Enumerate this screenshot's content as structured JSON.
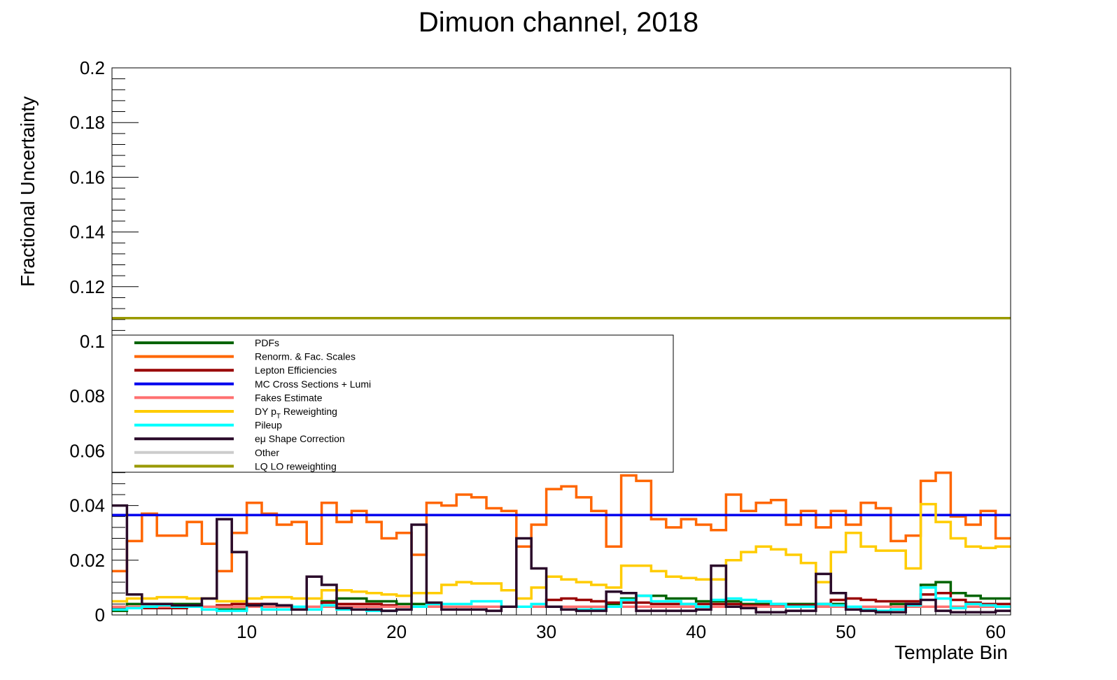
{
  "chart_data": {
    "type": "line",
    "step": true,
    "title": "Dimuon channel, 2018",
    "xlabel": "Template Bin",
    "ylabel": "Fractional Uncertainty",
    "xlim": [
      1,
      61
    ],
    "ylim": [
      0,
      0.2
    ],
    "x_ticks": [
      10,
      20,
      30,
      40,
      50,
      60
    ],
    "y_ticks": [
      0,
      0.02,
      0.04,
      0.06,
      0.08,
      0.1,
      0.12,
      0.14,
      0.16,
      0.18,
      0.2
    ],
    "y_tick_labels": [
      "0",
      "0.02",
      "0.04",
      "0.06",
      "0.08",
      "0.1",
      "0.12",
      "0.14",
      "0.16",
      "0.18",
      "0.2"
    ],
    "grid": false,
    "legend_position": "middle-left",
    "series": [
      {
        "name": "PDFs",
        "color": "#006400",
        "values": [
          0.0015,
          0.004,
          0.004,
          0.004,
          0.004,
          0.004,
          0.003,
          0.002,
          0.002,
          0.003,
          0.003,
          0.003,
          0.003,
          0.003,
          0.005,
          0.006,
          0.006,
          0.005,
          0.005,
          0.004,
          0.004,
          0.004,
          0.003,
          0.003,
          0.003,
          0.003,
          0.003,
          0.003,
          0.003,
          0.003,
          0.002,
          0.002,
          0.003,
          0.004,
          0.006,
          0.007,
          0.007,
          0.006,
          0.006,
          0.005,
          0.005,
          0.005,
          0.004,
          0.004,
          0.004,
          0.004,
          0.004,
          0.004,
          0.004,
          0.003,
          0.003,
          0.003,
          0.004,
          0.004,
          0.011,
          0.012,
          0.008,
          0.007,
          0.006,
          0.006
        ]
      },
      {
        "name": "Renorm. & Fac. Scales",
        "color": "#ff6600",
        "values": [
          0.016,
          0.027,
          0.037,
          0.029,
          0.029,
          0.034,
          0.026,
          0.016,
          0.03,
          0.041,
          0.037,
          0.033,
          0.034,
          0.026,
          0.041,
          0.034,
          0.038,
          0.034,
          0.028,
          0.03,
          0.022,
          0.041,
          0.04,
          0.044,
          0.043,
          0.039,
          0.038,
          0.025,
          0.033,
          0.046,
          0.047,
          0.043,
          0.038,
          0.025,
          0.051,
          0.049,
          0.035,
          0.032,
          0.035,
          0.033,
          0.031,
          0.044,
          0.038,
          0.041,
          0.042,
          0.033,
          0.038,
          0.032,
          0.038,
          0.033,
          0.041,
          0.039,
          0.027,
          0.029,
          0.049,
          0.052,
          0.036,
          0.033,
          0.038,
          0.028
        ]
      },
      {
        "name": "Lepton Efficiencies",
        "color": "#990000",
        "values": [
          0.0025,
          0.0025,
          0.0025,
          0.0025,
          0.0025,
          0.003,
          0.003,
          0.0035,
          0.004,
          0.004,
          0.004,
          0.0035,
          0.003,
          0.003,
          0.0045,
          0.004,
          0.004,
          0.004,
          0.0035,
          0.003,
          0.003,
          0.003,
          0.003,
          0.003,
          0.003,
          0.003,
          0.003,
          0.003,
          0.003,
          0.0055,
          0.006,
          0.0055,
          0.005,
          0.0045,
          0.0045,
          0.0045,
          0.004,
          0.004,
          0.004,
          0.004,
          0.004,
          0.004,
          0.0035,
          0.0035,
          0.0035,
          0.0035,
          0.0035,
          0.004,
          0.0055,
          0.006,
          0.0055,
          0.005,
          0.005,
          0.005,
          0.0075,
          0.008,
          0.0055,
          0.0045,
          0.004,
          0.004
        ]
      },
      {
        "name": "MC Cross Sections + Lumi",
        "color": "#0000ee",
        "values": [
          0.0365,
          0.0365,
          0.0365,
          0.0365,
          0.0365,
          0.0365,
          0.0365,
          0.0365,
          0.0365,
          0.0365,
          0.0365,
          0.0365,
          0.0365,
          0.0365,
          0.0365,
          0.0365,
          0.0365,
          0.0365,
          0.0365,
          0.0365,
          0.0365,
          0.0365,
          0.0365,
          0.0365,
          0.0365,
          0.0365,
          0.0365,
          0.0365,
          0.0365,
          0.0365,
          0.0365,
          0.0365,
          0.0365,
          0.0365,
          0.0365,
          0.0365,
          0.0365,
          0.0365,
          0.0365,
          0.0365,
          0.0365,
          0.0365,
          0.0365,
          0.0365,
          0.0365,
          0.0365,
          0.0365,
          0.0365,
          0.0365,
          0.0365,
          0.0365,
          0.0365,
          0.0365,
          0.0365,
          0.0365,
          0.0365,
          0.0365,
          0.0365,
          0.0365,
          0.0365
        ]
      },
      {
        "name": "Fakes Estimate",
        "color": "#ff7070",
        "values": [
          0.003,
          0.003,
          0.003,
          0.003,
          0.003,
          0.003,
          0.003,
          0.003,
          0.003,
          0.003,
          0.003,
          0.003,
          0.003,
          0.003,
          0.003,
          0.003,
          0.003,
          0.003,
          0.003,
          0.003,
          0.003,
          0.003,
          0.003,
          0.003,
          0.003,
          0.003,
          0.003,
          0.003,
          0.003,
          0.003,
          0.003,
          0.003,
          0.003,
          0.003,
          0.003,
          0.003,
          0.003,
          0.003,
          0.003,
          0.003,
          0.003,
          0.003,
          0.003,
          0.003,
          0.003,
          0.003,
          0.003,
          0.003,
          0.003,
          0.003,
          0.003,
          0.003,
          0.003,
          0.003,
          0.003,
          0.003,
          0.003,
          0.003,
          0.003,
          0.003
        ]
      },
      {
        "name": "DY pT Reweighting",
        "color": "#ffcc00",
        "values": [
          0.005,
          0.006,
          0.006,
          0.0065,
          0.0065,
          0.006,
          0.006,
          0.005,
          0.005,
          0.006,
          0.0065,
          0.0065,
          0.006,
          0.006,
          0.009,
          0.009,
          0.0085,
          0.008,
          0.0075,
          0.007,
          0.008,
          0.008,
          0.011,
          0.012,
          0.0115,
          0.0115,
          0.009,
          0.006,
          0.01,
          0.014,
          0.013,
          0.012,
          0.011,
          0.01,
          0.018,
          0.018,
          0.016,
          0.014,
          0.0135,
          0.013,
          0.013,
          0.02,
          0.023,
          0.025,
          0.024,
          0.022,
          0.019,
          0.012,
          0.023,
          0.03,
          0.025,
          0.0235,
          0.0235,
          0.017,
          0.0405,
          0.034,
          0.028,
          0.025,
          0.0245,
          0.025
        ]
      },
      {
        "name": "Pileup",
        "color": "#00ffff",
        "values": [
          0.002,
          0.0025,
          0.003,
          0.0035,
          0.003,
          0.003,
          0.002,
          0.0015,
          0.0015,
          0.0035,
          0.002,
          0.002,
          0.003,
          0.002,
          0.0035,
          0.002,
          0.002,
          0.0015,
          0.0015,
          0.002,
          0.003,
          0.004,
          0.004,
          0.004,
          0.005,
          0.005,
          0.003,
          0.003,
          0.004,
          0.003,
          0.002,
          0.002,
          0.002,
          0.003,
          0.0055,
          0.007,
          0.005,
          0.005,
          0.004,
          0.003,
          0.0055,
          0.006,
          0.0055,
          0.005,
          0.004,
          0.003,
          0.003,
          0.004,
          0.0035,
          0.003,
          0.002,
          0.0015,
          0.002,
          0.0035,
          0.01,
          0.006,
          0.0025,
          0.004,
          0.0035,
          0.003
        ]
      },
      {
        "name": "eμ Shape Correction",
        "color": "#2a0a2a",
        "values": [
          0.04,
          0.0075,
          0.004,
          0.004,
          0.0035,
          0.0035,
          0.006,
          0.035,
          0.023,
          0.0035,
          0.004,
          0.0035,
          0.002,
          0.014,
          0.011,
          0.0025,
          0.002,
          0.002,
          0.0015,
          0.002,
          0.033,
          0.0045,
          0.002,
          0.002,
          0.002,
          0.0015,
          0.003,
          0.028,
          0.017,
          0.003,
          0.002,
          0.0015,
          0.0015,
          0.0085,
          0.008,
          0.0015,
          0.0015,
          0.0015,
          0.0015,
          0.002,
          0.018,
          0.003,
          0.0025,
          0.001,
          0.001,
          0.0015,
          0.0015,
          0.015,
          0.008,
          0.002,
          0.0015,
          0.001,
          0.001,
          0.004,
          0.0055,
          0.0015,
          0.001,
          0.001,
          0.001,
          0.0015
        ]
      },
      {
        "name": "Other",
        "color": "#cccccc",
        "values": []
      },
      {
        "name": "LQ LO reweighting",
        "color": "#999900",
        "values": [
          0.1085,
          0.1085,
          0.1085,
          0.1085,
          0.1085,
          0.1085,
          0.1085,
          0.1085,
          0.1085,
          0.1085,
          0.1085,
          0.1085,
          0.1085,
          0.1085,
          0.1085,
          0.1085,
          0.1085,
          0.1085,
          0.1085,
          0.1085,
          0.1085,
          0.1085,
          0.1085,
          0.1085,
          0.1085,
          0.1085,
          0.1085,
          0.1085,
          0.1085,
          0.1085,
          0.1085,
          0.1085,
          0.1085,
          0.1085,
          0.1085,
          0.1085,
          0.1085,
          0.1085,
          0.1085,
          0.1085,
          0.1085,
          0.1085,
          0.1085,
          0.1085,
          0.1085,
          0.1085,
          0.1085,
          0.1085,
          0.1085,
          0.1085,
          0.1085,
          0.1085,
          0.1085,
          0.1085,
          0.1085,
          0.1085,
          0.1085,
          0.1085,
          0.1085,
          0.1085
        ]
      }
    ]
  }
}
